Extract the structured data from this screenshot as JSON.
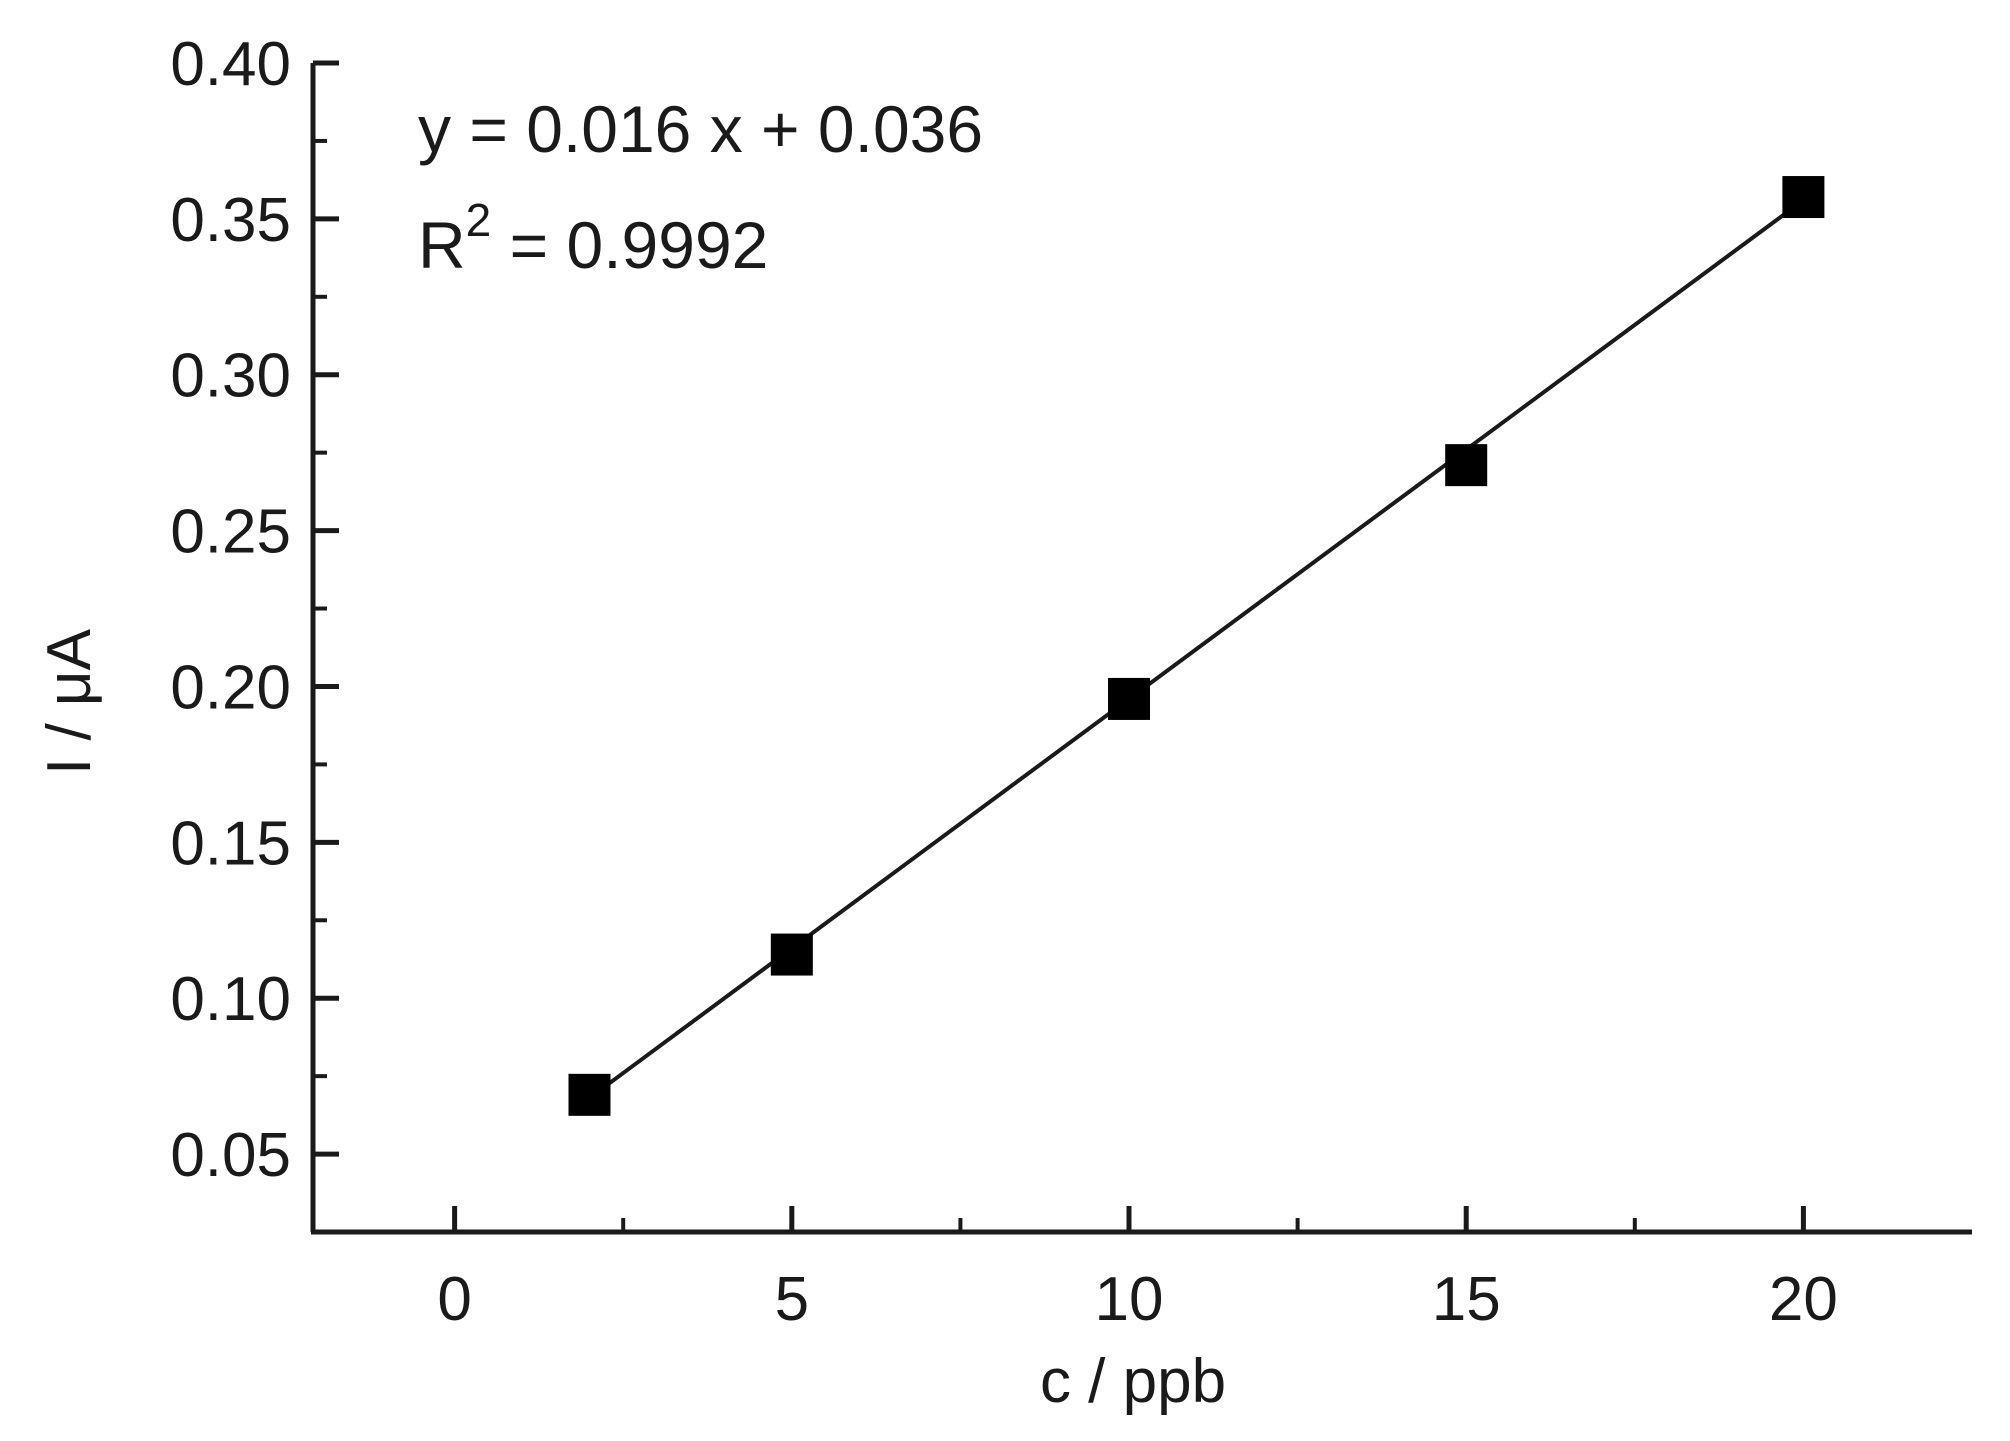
{
  "chart_data": {
    "type": "scatter",
    "xlabel": "c / ppb",
    "ylabel": "I / μA",
    "xlim": [
      -2.1,
      22.5
    ],
    "ylim": [
      0.025,
      0.4
    ],
    "x_ticks": [
      0,
      5,
      10,
      15,
      20
    ],
    "x_tick_labels": [
      "0",
      "5",
      "10",
      "15",
      "20"
    ],
    "y_ticks": [
      0.05,
      0.1,
      0.15,
      0.2,
      0.25,
      0.3,
      0.35,
      0.4
    ],
    "y_tick_labels": [
      "0.05",
      "0.10",
      "0.15",
      "0.20",
      "0.25",
      "0.30",
      "0.35",
      "0.40"
    ],
    "grid": false,
    "series": [
      {
        "marker": "square",
        "color": "#000000",
        "x": [
          2,
          5,
          10,
          15,
          20
        ],
        "y": [
          0.069,
          0.114,
          0.196,
          0.271,
          0.357
        ]
      }
    ],
    "fit_line": {
      "slope": 0.016,
      "intercept": 0.036,
      "x_range": [
        2,
        20
      ],
      "color": "#1a1a1a"
    },
    "annotations": {
      "equation": "y = 0.016 x + 0.036",
      "r2_prefix": "R",
      "r2_sup": "2",
      "r2_value": " = 0.9992"
    }
  }
}
